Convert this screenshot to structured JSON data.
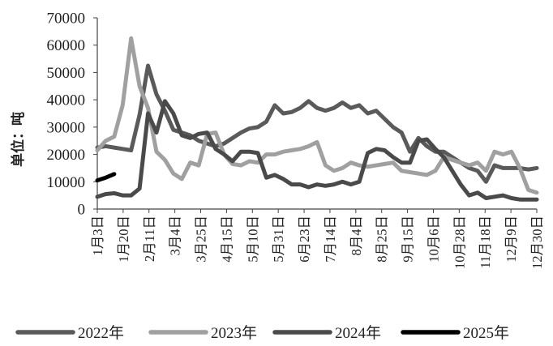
{
  "chart_data": {
    "type": "line",
    "ylabel": "单位：吨",
    "xlabel": "",
    "ylim": [
      0,
      70000
    ],
    "yticks": [
      "0",
      "10000",
      "20000",
      "30000",
      "40000",
      "50000",
      "60000",
      "70000"
    ],
    "x_tick_labels": [
      "1月3日",
      "1月20日",
      "2月11日",
      "3月4日",
      "3月25日",
      "4月15日",
      "5月10日",
      "5月31日",
      "6月23日",
      "7月14日",
      "8月4日",
      "8月25日",
      "9月15日",
      "10月6日",
      "10月28日",
      "11月18日",
      "12月9日",
      "12月30日"
    ],
    "n_points": 53,
    "grid": false,
    "legend_position": "bottom",
    "series": [
      {
        "name": "2022年",
        "color": "#5a5a5a",
        "values": [
          22500,
          23000,
          22500,
          22000,
          21500,
          34500,
          52500,
          42000,
          36000,
          29000,
          28000,
          27000,
          25000,
          24000,
          23000,
          24000,
          26000,
          28000,
          29500,
          30000,
          32000,
          38000,
          35000,
          35500,
          37000,
          39500,
          37000,
          36000,
          37000,
          39000,
          37000,
          38000,
          35000,
          36000,
          33000,
          30000,
          28000,
          21000,
          26000,
          23000,
          21000,
          21000,
          19000,
          17000,
          15000,
          14000,
          10000,
          16000,
          15000,
          15000,
          15000,
          14500,
          15000
        ]
      },
      {
        "name": "2023年",
        "color": "#a0a0a0",
        "values": [
          21500,
          25000,
          26500,
          38000,
          62500,
          45000,
          37000,
          21000,
          18000,
          13000,
          11000,
          17000,
          16000,
          27500,
          28000,
          20000,
          16500,
          16000,
          17500,
          17000,
          20000,
          20000,
          21000,
          21500,
          22000,
          23000,
          24500,
          16000,
          14000,
          15000,
          17000,
          16000,
          15500,
          16000,
          16500,
          17000,
          14000,
          13500,
          13000,
          12500,
          14000,
          19000,
          18000,
          17000,
          16000,
          17000,
          14000,
          21000,
          20000,
          21000,
          15000,
          7000,
          6000
        ]
      },
      {
        "name": "2024年",
        "color": "#4a4a4a",
        "values": [
          4500,
          5500,
          5800,
          5000,
          5000,
          7500,
          35000,
          28000,
          39500,
          35000,
          27000,
          26000,
          27500,
          28000,
          22000,
          20000,
          17500,
          21000,
          21000,
          20500,
          11500,
          12500,
          11000,
          9000,
          9000,
          8000,
          9000,
          8500,
          9000,
          10000,
          9000,
          10000,
          20500,
          22000,
          21500,
          19000,
          17000,
          17000,
          25000,
          25500,
          22000,
          19000,
          14000,
          9000,
          5000,
          6000,
          4000,
          4500,
          5000,
          4000,
          3500,
          3500,
          3500
        ]
      },
      {
        "name": "2025年",
        "color": "#000000",
        "values": [
          10500,
          11500,
          12800
        ]
      }
    ]
  }
}
